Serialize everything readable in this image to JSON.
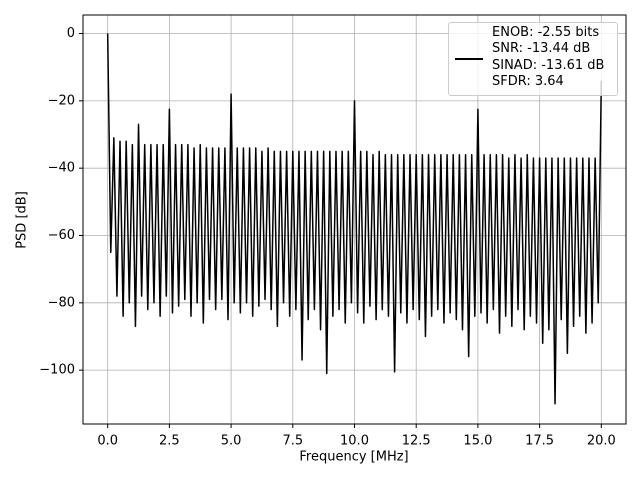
{
  "chart_data": {
    "type": "line",
    "x": [
      0,
      0.125,
      0.25,
      0.375,
      0.5,
      0.625,
      0.75,
      0.875,
      1,
      1.125,
      1.25,
      1.375,
      1.5,
      1.625,
      1.75,
      1.875,
      2,
      2.125,
      2.25,
      2.375,
      2.5,
      2.625,
      2.75,
      2.875,
      3,
      3.125,
      3.25,
      3.375,
      3.5,
      3.625,
      3.75,
      3.875,
      4,
      4.125,
      4.25,
      4.375,
      4.5,
      4.625,
      4.75,
      4.875,
      5,
      5.125,
      5.25,
      5.375,
      5.5,
      5.625,
      5.75,
      5.875,
      6,
      6.125,
      6.25,
      6.375,
      6.5,
      6.625,
      6.75,
      6.875,
      7,
      7.125,
      7.25,
      7.375,
      7.5,
      7.625,
      7.75,
      7.875,
      8,
      8.125,
      8.25,
      8.375,
      8.5,
      8.625,
      8.75,
      8.875,
      9,
      9.125,
      9.25,
      9.375,
      9.5,
      9.625,
      9.75,
      9.875,
      10,
      10.125,
      10.25,
      10.375,
      10.5,
      10.625,
      10.75,
      10.875,
      11,
      11.125,
      11.25,
      11.375,
      11.5,
      11.625,
      11.75,
      11.875,
      12,
      12.125,
      12.25,
      12.375,
      12.5,
      12.625,
      12.75,
      12.875,
      13,
      13.125,
      13.25,
      13.375,
      13.5,
      13.625,
      13.75,
      13.875,
      14,
      14.125,
      14.25,
      14.375,
      14.5,
      14.625,
      14.75,
      14.875,
      15,
      15.125,
      15.25,
      15.375,
      15.5,
      15.625,
      15.75,
      15.875,
      16,
      16.125,
      16.25,
      16.375,
      16.5,
      16.625,
      16.75,
      16.875,
      17,
      17.125,
      17.25,
      17.375,
      17.5,
      17.625,
      17.75,
      17.875,
      18,
      18.125,
      18.25,
      18.375,
      18.5,
      18.625,
      18.75,
      18.875,
      19,
      19.125,
      19.25,
      19.375,
      19.5,
      19.625,
      19.75,
      19.875,
      20
    ],
    "series": [
      {
        "name": "ENOB: -2.55 bits\nSNR: -13.44 dB\nSINAD: -13.61 dB\nSFDR: 3.64",
        "color": "#000000",
        "values": [
          0,
          -65,
          -31,
          -78,
          -32,
          -84,
          -32,
          -80,
          -33,
          -87,
          -27,
          -78,
          -33,
          -82,
          -33,
          -80,
          -33,
          -84,
          -33,
          -78,
          -22.5,
          -83,
          -33,
          -81,
          -33,
          -79,
          -33,
          -84,
          -34,
          -80,
          -33,
          -86,
          -34,
          -79,
          -34,
          -82,
          -34,
          -79,
          -34,
          -85,
          -18,
          -80,
          -34,
          -83,
          -34,
          -80,
          -34,
          -84,
          -34,
          -81,
          -35,
          -79,
          -34,
          -82,
          -35,
          -87,
          -35,
          -80,
          -35,
          -84,
          -35,
          -82,
          -35,
          -97,
          -35,
          -85,
          -35,
          -82,
          -35,
          -88,
          -35,
          -101,
          -35,
          -84,
          -35,
          -82,
          -35,
          -86,
          -35,
          -80,
          -20,
          -83,
          -35,
          -86,
          -35,
          -81,
          -36,
          -85,
          -35,
          -82,
          -36,
          -84,
          -36,
          -100.5,
          -36,
          -83,
          -36,
          -86,
          -36,
          -82,
          -36,
          -85,
          -36,
          -90,
          -36,
          -84,
          -36,
          -82,
          -36,
          -86,
          -36,
          -83,
          -36,
          -85,
          -36,
          -88,
          -36,
          -96,
          -36,
          -84,
          -22.5,
          -83,
          -36,
          -86,
          -36,
          -82,
          -36,
          -89,
          -36,
          -84,
          -37,
          -87,
          -36,
          -82,
          -37,
          -88,
          -36,
          -84,
          -37,
          -86,
          -37,
          -92,
          -37,
          -88,
          -37,
          -110,
          -37,
          -85,
          -37,
          -95,
          -37,
          -87,
          -37,
          -84,
          -37,
          -89,
          -37,
          -86,
          -37,
          -80,
          -14
        ]
      }
    ],
    "xlabel": "Frequency [MHz]",
    "ylabel": "PSD [dB]",
    "xlim": [
      -1,
      21
    ],
    "ylim": [
      -116,
      5.5
    ],
    "xticks": [
      {
        "value": 0,
        "label": "0.0"
      },
      {
        "value": 2.5,
        "label": "2.5"
      },
      {
        "value": 5,
        "label": "5.0"
      },
      {
        "value": 7.5,
        "label": "7.5"
      },
      {
        "value": 10,
        "label": "10.0"
      },
      {
        "value": 12.5,
        "label": "12.5"
      },
      {
        "value": 15,
        "label": "15.0"
      },
      {
        "value": 17.5,
        "label": "17.5"
      },
      {
        "value": 20,
        "label": "20.0"
      }
    ],
    "yticks": [
      {
        "value": 0,
        "label": "0"
      },
      {
        "value": -20,
        "label": "−20"
      },
      {
        "value": -40,
        "label": "−40"
      },
      {
        "value": -60,
        "label": "−60"
      },
      {
        "value": -80,
        "label": "−80"
      },
      {
        "value": -100,
        "label": "−100"
      }
    ],
    "grid": true,
    "legend": "upper right"
  }
}
